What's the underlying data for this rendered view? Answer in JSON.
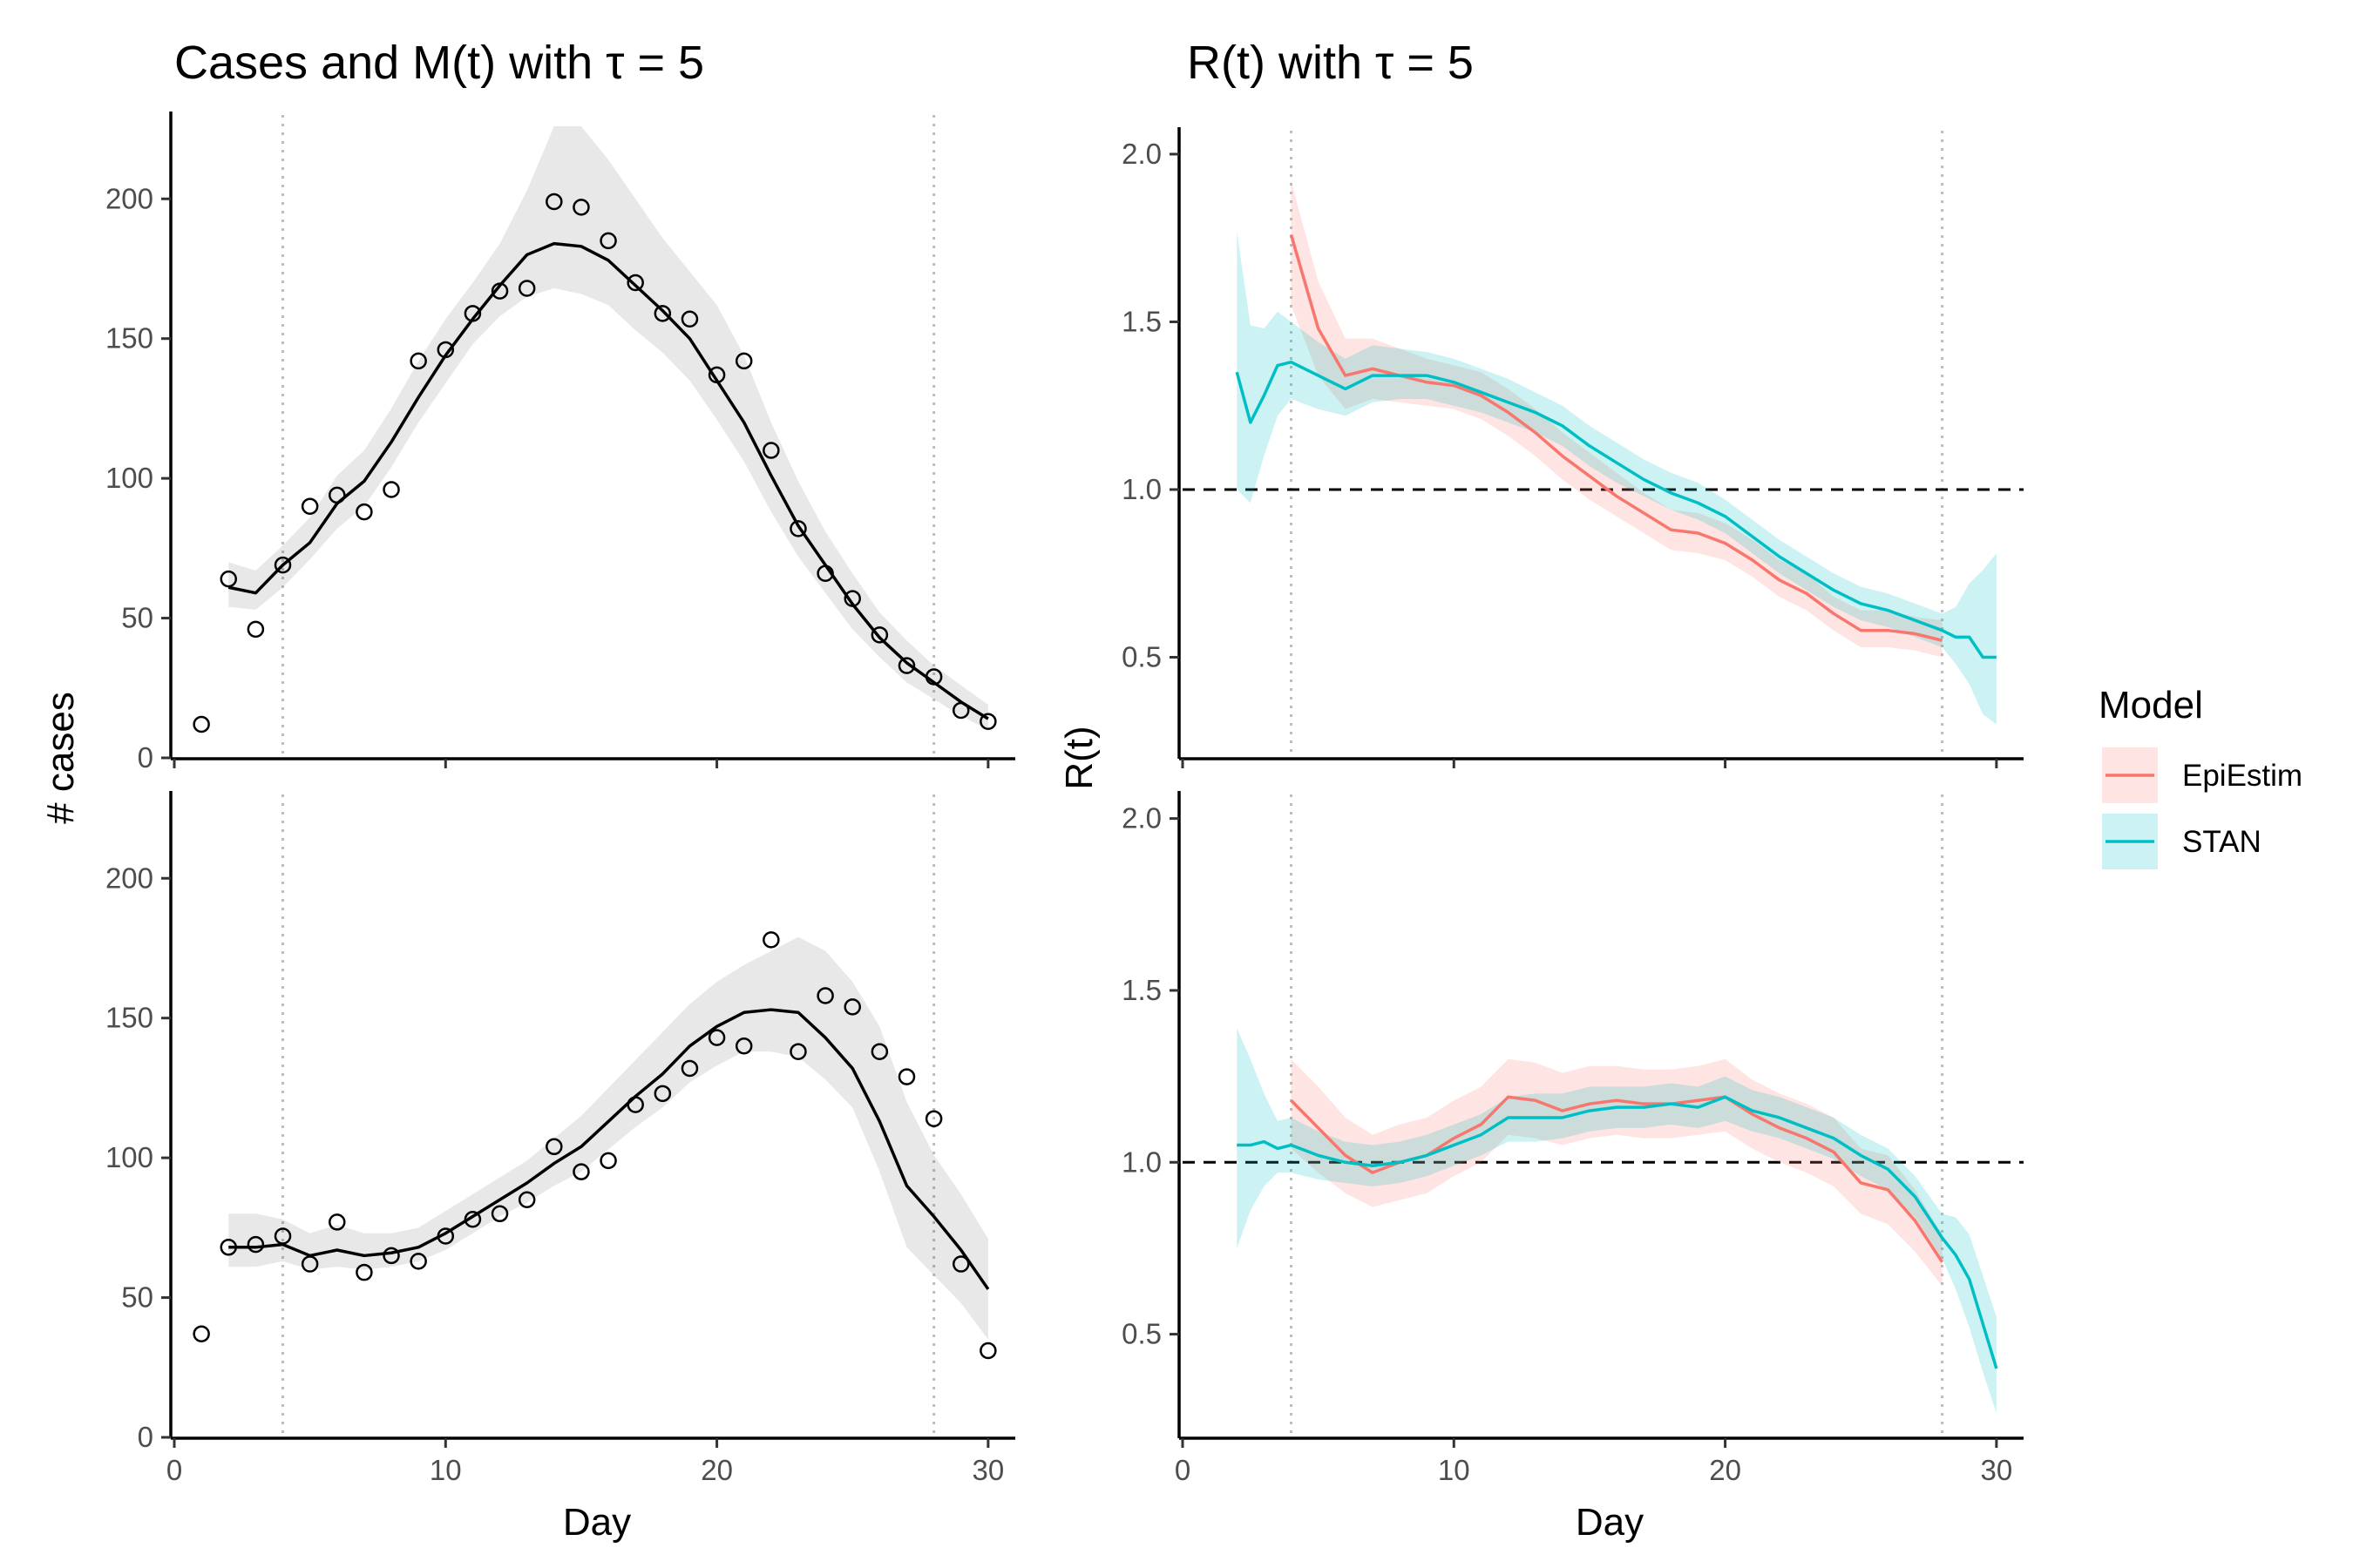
{
  "chart_data": [
    {
      "type": "line",
      "panel": "cases-top",
      "title": "Cases and M(t) with τ = 5",
      "xlabel": "",
      "ylabel": "# cases",
      "xlim": [
        0,
        31
      ],
      "ylim": [
        0,
        230
      ],
      "xticks": [
        0,
        10,
        20,
        30
      ],
      "yticks": [
        0,
        50,
        100,
        150,
        200
      ],
      "vlines": [
        4,
        28
      ],
      "observed": {
        "x": [
          1,
          2,
          3,
          4,
          5,
          6,
          7,
          8,
          9,
          10,
          11,
          12,
          13,
          14,
          15,
          16,
          17,
          18,
          19,
          20,
          21,
          22,
          23,
          24,
          25,
          26,
          27,
          28,
          29,
          30
        ],
        "y": [
          12,
          64,
          46,
          69,
          90,
          94,
          88,
          96,
          142,
          146,
          159,
          167,
          168,
          199,
          197,
          185,
          170,
          159,
          157,
          137,
          142,
          110,
          82,
          66,
          57,
          44,
          33,
          29,
          17,
          13
        ]
      },
      "fit": {
        "x": [
          2,
          3,
          4,
          5,
          6,
          7,
          8,
          9,
          10,
          11,
          12,
          13,
          14,
          15,
          16,
          17,
          18,
          19,
          20,
          21,
          22,
          23,
          24,
          25,
          26,
          27,
          28,
          29,
          30
        ],
        "y": [
          61,
          59,
          69,
          77,
          91,
          99,
          113,
          129,
          144,
          157,
          169,
          180,
          184,
          183,
          178,
          169,
          160,
          150,
          135,
          120,
          101,
          83,
          69,
          55,
          43,
          34,
          27,
          20,
          14
        ],
        "lower": [
          54,
          53,
          61,
          71,
          82,
          90,
          104,
          120,
          134,
          148,
          158,
          165,
          168,
          166,
          162,
          153,
          145,
          135,
          121,
          106,
          88,
          72,
          59,
          46,
          36,
          27,
          21,
          15,
          10
        ],
        "upper": [
          70,
          67,
          76,
          86,
          101,
          110,
          125,
          142,
          157,
          170,
          184,
          203,
          226,
          226,
          214,
          200,
          186,
          174,
          162,
          144,
          120,
          99,
          81,
          66,
          52,
          42,
          33,
          26,
          19
        ]
      }
    },
    {
      "type": "line",
      "panel": "cases-bottom",
      "xlabel": "Day",
      "ylabel": "# cases",
      "xlim": [
        0,
        31
      ],
      "ylim": [
        0,
        230
      ],
      "xticks": [
        0,
        10,
        20,
        30
      ],
      "yticks": [
        0,
        50,
        100,
        150,
        200
      ],
      "vlines": [
        4,
        28
      ],
      "observed": {
        "x": [
          1,
          2,
          3,
          4,
          5,
          6,
          7,
          8,
          9,
          10,
          11,
          12,
          13,
          14,
          15,
          16,
          17,
          18,
          19,
          20,
          21,
          22,
          23,
          24,
          25,
          26,
          27,
          28,
          29,
          30
        ],
        "y": [
          37,
          68,
          69,
          72,
          62,
          77,
          59,
          65,
          63,
          72,
          78,
          80,
          85,
          104,
          95,
          99,
          119,
          123,
          132,
          143,
          140,
          178,
          138,
          158,
          154,
          138,
          129,
          114,
          62,
          31
        ]
      },
      "fit": {
        "x": [
          2,
          3,
          4,
          5,
          6,
          7,
          8,
          9,
          10,
          11,
          12,
          13,
          14,
          15,
          16,
          17,
          18,
          19,
          20,
          21,
          22,
          23,
          24,
          25,
          26,
          27,
          28,
          29,
          30
        ],
        "y": [
          68,
          68,
          69,
          65,
          67,
          65,
          66,
          68,
          73,
          79,
          85,
          91,
          98,
          104,
          113,
          122,
          130,
          140,
          147,
          152,
          153,
          152,
          143,
          132,
          113,
          90,
          79,
          67,
          53
        ],
        "lower": [
          61,
          61,
          63,
          60,
          61,
          60,
          61,
          63,
          67,
          73,
          79,
          84,
          90,
          95,
          103,
          111,
          118,
          127,
          133,
          138,
          138,
          136,
          128,
          118,
          95,
          68,
          58,
          48,
          35
        ],
        "upper": [
          80,
          80,
          78,
          73,
          76,
          73,
          73,
          75,
          81,
          87,
          93,
          99,
          107,
          115,
          125,
          135,
          145,
          155,
          163,
          169,
          174,
          179,
          174,
          163,
          147,
          120,
          101,
          87,
          71
        ]
      }
    },
    {
      "type": "line",
      "panel": "rt-top",
      "title": "R(t) with τ = 5",
      "xlabel": "",
      "ylabel": "R(t)",
      "xlim": [
        0,
        31
      ],
      "ylim": [
        0.2,
        2.07
      ],
      "xticks": [
        0,
        10,
        20,
        30
      ],
      "yticks": [
        0.5,
        1.0,
        1.5,
        2.0
      ],
      "ytick_labels": [
        "0.5",
        "1.0",
        "1.5",
        "2.0"
      ],
      "hline": 1.0,
      "vlines": [
        4,
        28
      ],
      "series": [
        {
          "name": "EpiEstim",
          "color": "#F8766D",
          "x": [
            4,
            5,
            6,
            7,
            8,
            9,
            10,
            11,
            12,
            13,
            14,
            15,
            16,
            17,
            18,
            19,
            20,
            21,
            22,
            23,
            24,
            25,
            26,
            27,
            28
          ],
          "y": [
            1.76,
            1.48,
            1.34,
            1.36,
            1.34,
            1.32,
            1.31,
            1.28,
            1.23,
            1.17,
            1.1,
            1.04,
            0.98,
            0.93,
            0.88,
            0.87,
            0.84,
            0.79,
            0.73,
            0.69,
            0.63,
            0.58,
            0.58,
            0.57,
            0.55
          ],
          "lower": [
            1.55,
            1.34,
            1.24,
            1.27,
            1.26,
            1.25,
            1.24,
            1.21,
            1.16,
            1.1,
            1.03,
            0.97,
            0.92,
            0.87,
            0.82,
            0.81,
            0.79,
            0.74,
            0.68,
            0.64,
            0.58,
            0.53,
            0.53,
            0.52,
            0.5
          ],
          "upper": [
            1.92,
            1.62,
            1.45,
            1.45,
            1.42,
            1.39,
            1.37,
            1.35,
            1.3,
            1.24,
            1.17,
            1.11,
            1.05,
            0.99,
            0.94,
            0.93,
            0.9,
            0.85,
            0.79,
            0.75,
            0.68,
            0.64,
            0.64,
            0.62,
            0.61
          ]
        },
        {
          "name": "STAN",
          "color": "#00BFC4",
          "x": [
            2,
            2.5,
            3,
            3.5,
            4,
            5,
            6,
            7,
            8,
            9,
            10,
            11,
            12,
            13,
            14,
            15,
            16,
            17,
            18,
            19,
            20,
            21,
            22,
            23,
            24,
            25,
            26,
            27,
            28,
            28.5,
            29,
            29.5,
            30
          ],
          "y": [
            1.35,
            1.2,
            1.28,
            1.37,
            1.38,
            1.34,
            1.3,
            1.34,
            1.34,
            1.34,
            1.32,
            1.29,
            1.26,
            1.23,
            1.19,
            1.13,
            1.08,
            1.03,
            0.99,
            0.96,
            0.92,
            0.86,
            0.8,
            0.75,
            0.7,
            0.66,
            0.64,
            0.61,
            0.58,
            0.56,
            0.56,
            0.5,
            0.5
          ],
          "lower": [
            1.0,
            0.96,
            1.1,
            1.22,
            1.27,
            1.24,
            1.22,
            1.26,
            1.27,
            1.27,
            1.25,
            1.23,
            1.2,
            1.17,
            1.13,
            1.07,
            1.02,
            0.98,
            0.94,
            0.91,
            0.87,
            0.81,
            0.75,
            0.7,
            0.65,
            0.61,
            0.59,
            0.56,
            0.53,
            0.48,
            0.42,
            0.33,
            0.3
          ],
          "upper": [
            1.77,
            1.49,
            1.48,
            1.53,
            1.5,
            1.44,
            1.39,
            1.43,
            1.42,
            1.41,
            1.39,
            1.36,
            1.33,
            1.29,
            1.25,
            1.19,
            1.14,
            1.09,
            1.05,
            1.02,
            0.97,
            0.91,
            0.85,
            0.8,
            0.75,
            0.71,
            0.69,
            0.66,
            0.63,
            0.65,
            0.72,
            0.76,
            0.81
          ]
        }
      ]
    },
    {
      "type": "line",
      "panel": "rt-bottom",
      "xlabel": "Day",
      "ylabel": "R(t)",
      "xlim": [
        0,
        31
      ],
      "ylim": [
        0.2,
        2.07
      ],
      "xticks": [
        0,
        10,
        20,
        30
      ],
      "yticks": [
        0.5,
        1.0,
        1.5,
        2.0
      ],
      "ytick_labels": [
        "0.5",
        "1.0",
        "1.5",
        "2.0"
      ],
      "hline": 1.0,
      "vlines": [
        4,
        28
      ],
      "series": [
        {
          "name": "EpiEstim",
          "color": "#F8766D",
          "x": [
            4,
            5,
            6,
            7,
            8,
            9,
            10,
            11,
            12,
            13,
            14,
            15,
            16,
            17,
            18,
            19,
            20,
            21,
            22,
            23,
            24,
            25,
            26,
            27,
            28
          ],
          "y": [
            1.18,
            1.1,
            1.02,
            0.97,
            1.0,
            1.02,
            1.07,
            1.11,
            1.19,
            1.18,
            1.15,
            1.17,
            1.18,
            1.17,
            1.17,
            1.18,
            1.19,
            1.14,
            1.1,
            1.07,
            1.03,
            0.94,
            0.92,
            0.83,
            0.71
          ],
          "lower": [
            1.04,
            0.97,
            0.91,
            0.87,
            0.89,
            0.91,
            0.96,
            1.0,
            1.08,
            1.07,
            1.05,
            1.07,
            1.08,
            1.07,
            1.07,
            1.08,
            1.09,
            1.04,
            1.0,
            0.97,
            0.93,
            0.85,
            0.82,
            0.74,
            0.64
          ],
          "upper": [
            1.3,
            1.22,
            1.13,
            1.08,
            1.11,
            1.13,
            1.18,
            1.22,
            1.3,
            1.29,
            1.26,
            1.28,
            1.28,
            1.27,
            1.27,
            1.28,
            1.3,
            1.24,
            1.2,
            1.17,
            1.13,
            1.04,
            1.02,
            0.92,
            0.79
          ]
        },
        {
          "name": "STAN",
          "color": "#00BFC4",
          "x": [
            2,
            2.5,
            3,
            3.5,
            4,
            5,
            6,
            7,
            8,
            9,
            10,
            11,
            12,
            13,
            14,
            15,
            16,
            17,
            18,
            19,
            20,
            21,
            22,
            23,
            24,
            25,
            26,
            27,
            28,
            28.5,
            29,
            29.5,
            30
          ],
          "y": [
            1.05,
            1.05,
            1.06,
            1.04,
            1.05,
            1.02,
            1.0,
            0.99,
            1.0,
            1.02,
            1.05,
            1.08,
            1.13,
            1.13,
            1.13,
            1.15,
            1.16,
            1.16,
            1.17,
            1.16,
            1.19,
            1.15,
            1.13,
            1.1,
            1.07,
            1.02,
            0.98,
            0.9,
            0.78,
            0.73,
            0.66,
            0.53,
            0.4
          ],
          "lower": [
            0.75,
            0.86,
            0.93,
            0.97,
            0.97,
            0.95,
            0.94,
            0.93,
            0.94,
            0.96,
            0.99,
            1.02,
            1.06,
            1.06,
            1.07,
            1.09,
            1.1,
            1.1,
            1.11,
            1.1,
            1.12,
            1.09,
            1.07,
            1.04,
            1.01,
            0.96,
            0.92,
            0.84,
            0.72,
            0.63,
            0.52,
            0.39,
            0.27
          ],
          "upper": [
            1.39,
            1.3,
            1.2,
            1.12,
            1.13,
            1.09,
            1.06,
            1.05,
            1.06,
            1.08,
            1.11,
            1.14,
            1.19,
            1.2,
            1.2,
            1.22,
            1.22,
            1.22,
            1.23,
            1.22,
            1.25,
            1.21,
            1.19,
            1.16,
            1.13,
            1.08,
            1.04,
            0.96,
            0.85,
            0.84,
            0.79,
            0.67,
            0.55
          ]
        }
      ]
    }
  ],
  "legend": {
    "title": "Model",
    "position": "right",
    "items": [
      {
        "label": "EpiEstim",
        "color": "#F8766D"
      },
      {
        "label": "STAN",
        "color": "#00BFC4"
      }
    ]
  }
}
